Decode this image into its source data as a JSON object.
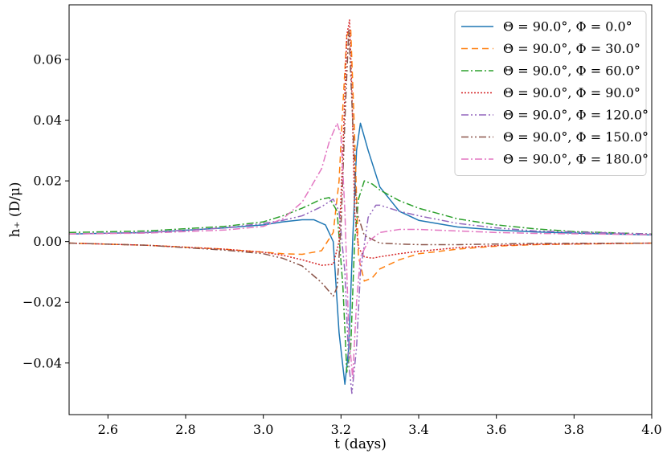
{
  "chart_data": {
    "type": "line",
    "title": "",
    "xlabel": "t (days)",
    "ylabel": "h₊ (D/μ)",
    "xlim": [
      2.5,
      4.0
    ],
    "ylim": [
      -0.057,
      0.078
    ],
    "xticks": [
      2.6,
      2.8,
      3.0,
      3.2,
      3.4,
      3.6,
      3.8,
      4.0
    ],
    "xtick_labels": [
      "2.6",
      "2.8",
      "3.0",
      "3.2",
      "3.4",
      "3.6",
      "3.8",
      "4.0"
    ],
    "yticks": [
      -0.04,
      -0.02,
      0.0,
      0.02,
      0.04,
      0.06
    ],
    "ytick_labels": [
      "−0.04",
      "−0.02",
      "0.00",
      "0.02",
      "0.04",
      "0.06"
    ],
    "grid": false,
    "legend_position": "top-right",
    "series": [
      {
        "name": "Θ = 90.0°,  Φ = 0.0°",
        "color": "#1f77b4",
        "dash": "solid",
        "x": [
          2.5,
          2.7,
          2.9,
          3.0,
          3.05,
          3.1,
          3.13,
          3.16,
          3.18,
          3.195,
          3.21,
          3.22,
          3.23,
          3.24,
          3.25,
          3.27,
          3.3,
          3.35,
          3.4,
          3.5,
          3.6,
          3.7,
          3.8,
          4.0
        ],
        "y": [
          0.0025,
          0.003,
          0.0045,
          0.0055,
          0.0065,
          0.0072,
          0.0072,
          0.0055,
          0.0,
          -0.03,
          -0.047,
          -0.035,
          0.0,
          0.03,
          0.039,
          0.03,
          0.018,
          0.01,
          0.007,
          0.0048,
          0.0038,
          0.0032,
          0.0028,
          0.0022
        ]
      },
      {
        "name": "Θ = 90.0°,  Φ = 30.0°",
        "color": "#ff7f0e",
        "dash": "8,5",
        "x": [
          2.5,
          2.7,
          2.9,
          3.0,
          3.05,
          3.1,
          3.15,
          3.18,
          3.195,
          3.205,
          3.215,
          3.225,
          3.235,
          3.245,
          3.26,
          3.28,
          3.3,
          3.35,
          3.4,
          3.5,
          3.6,
          3.7,
          4.0
        ],
        "y": [
          -0.0005,
          -0.0012,
          -0.0025,
          -0.0035,
          -0.004,
          -0.0042,
          -0.003,
          0.003,
          0.02,
          0.045,
          0.068,
          0.07,
          0.035,
          -0.005,
          -0.013,
          -0.012,
          -0.009,
          -0.006,
          -0.004,
          -0.0025,
          -0.0015,
          -0.001,
          -0.0005
        ]
      },
      {
        "name": "Θ = 90.0°,  Φ = 60.0°",
        "color": "#2ca02c",
        "dash": "9,3,2,3",
        "x": [
          2.5,
          2.7,
          2.9,
          3.0,
          3.05,
          3.1,
          3.15,
          3.17,
          3.19,
          3.205,
          3.215,
          3.225,
          3.235,
          3.245,
          3.26,
          3.28,
          3.3,
          3.35,
          3.4,
          3.5,
          3.6,
          3.7,
          3.8,
          4.0
        ],
        "y": [
          0.003,
          0.0035,
          0.005,
          0.0065,
          0.0085,
          0.011,
          0.014,
          0.0145,
          0.01,
          -0.015,
          -0.043,
          -0.035,
          0.0,
          0.014,
          0.02,
          0.019,
          0.017,
          0.0135,
          0.011,
          0.0075,
          0.0055,
          0.0042,
          0.0033,
          0.0025
        ]
      },
      {
        "name": "Θ = 90.0°,  Φ = 90.0°",
        "color": "#d62728",
        "dash": "2,2",
        "x": [
          2.5,
          2.7,
          2.9,
          3.0,
          3.05,
          3.1,
          3.15,
          3.18,
          3.195,
          3.205,
          3.215,
          3.222,
          3.228,
          3.235,
          3.245,
          3.26,
          3.28,
          3.3,
          3.35,
          3.4,
          3.5,
          3.6,
          3.7,
          4.0
        ],
        "y": [
          -0.0005,
          -0.0012,
          -0.0025,
          -0.0035,
          -0.0045,
          -0.006,
          -0.0078,
          -0.0075,
          0.0,
          0.03,
          0.068,
          0.073,
          0.05,
          0.01,
          -0.002,
          -0.005,
          -0.0055,
          -0.005,
          -0.004,
          -0.0032,
          -0.002,
          -0.0013,
          -0.0009,
          -0.0005
        ]
      },
      {
        "name": "Θ = 90.0°,  Φ = 120.0°",
        "color": "#9467bd",
        "dash": "9,3,2,3,2,3",
        "x": [
          2.5,
          2.7,
          2.9,
          3.0,
          3.05,
          3.1,
          3.15,
          3.18,
          3.195,
          3.21,
          3.22,
          3.228,
          3.24,
          3.25,
          3.27,
          3.29,
          3.3,
          3.35,
          3.4,
          3.5,
          3.6,
          3.7,
          4.0
        ],
        "y": [
          0.0025,
          0.003,
          0.0045,
          0.006,
          0.007,
          0.0085,
          0.0115,
          0.014,
          0.01,
          -0.01,
          -0.04,
          -0.05,
          -0.035,
          -0.01,
          0.008,
          0.012,
          0.012,
          0.01,
          0.0085,
          0.006,
          0.0045,
          0.0035,
          0.0025
        ]
      },
      {
        "name": "Θ = 90.0°,  Φ = 150.0°",
        "color": "#8c564b",
        "dash": "9,3,2,3,2,3",
        "x": [
          2.5,
          2.7,
          2.9,
          3.0,
          3.05,
          3.1,
          3.15,
          3.18,
          3.19,
          3.2,
          3.21,
          3.22,
          3.23,
          3.24,
          3.26,
          3.3,
          3.35,
          3.4,
          3.5,
          3.6,
          3.7,
          4.0
        ],
        "y": [
          -0.0005,
          -0.0012,
          -0.0028,
          -0.004,
          -0.0055,
          -0.008,
          -0.0135,
          -0.018,
          -0.015,
          0.005,
          0.04,
          0.07,
          0.04,
          0.01,
          0.002,
          -0.0005,
          -0.0008,
          -0.001,
          -0.001,
          -0.0008,
          -0.0006,
          -0.0005
        ]
      },
      {
        "name": "Θ = 90.0°,  Φ = 180.0°",
        "color": "#e377c2",
        "dash": "9,3,2,3",
        "x": [
          2.5,
          2.7,
          2.9,
          3.0,
          3.05,
          3.1,
          3.15,
          3.17,
          3.19,
          3.2,
          3.21,
          3.22,
          3.23,
          3.24,
          3.25,
          3.27,
          3.3,
          3.35,
          3.4,
          3.5,
          3.6,
          3.7,
          4.0
        ],
        "y": [
          0.0025,
          0.0028,
          0.0038,
          0.005,
          0.0075,
          0.013,
          0.024,
          0.033,
          0.039,
          0.035,
          0.01,
          -0.03,
          -0.045,
          -0.02,
          -0.005,
          0.0,
          0.003,
          0.004,
          0.004,
          0.0035,
          0.003,
          0.0027,
          0.0023
        ]
      }
    ]
  }
}
